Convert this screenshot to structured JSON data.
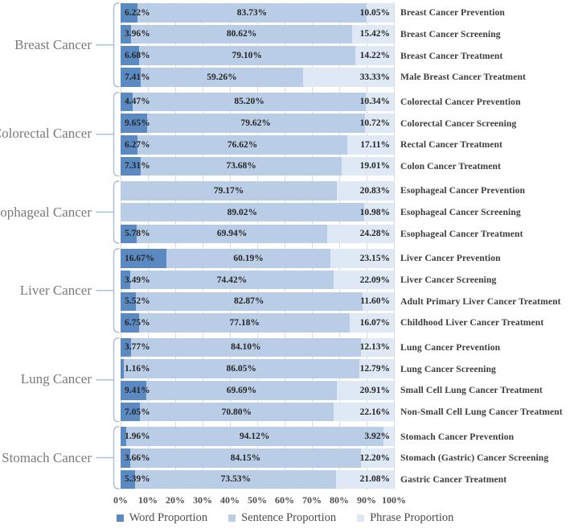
{
  "chart_data": {
    "type": "bar",
    "variant": "horizontal-stacked-100pct",
    "title": "",
    "xlabel": "",
    "ylabel": "",
    "x_axis": {
      "min": 0,
      "max": 100,
      "ticks": [
        "0%",
        "10%",
        "20%",
        "30%",
        "40%",
        "50%",
        "60%",
        "70%",
        "80%",
        "90%",
        "100%"
      ],
      "gridlines": true,
      "gridline_color": "#dcdcdc"
    },
    "series": [
      {
        "name": "Word Proportion",
        "color": "#5b8ac3"
      },
      {
        "name": "Sentence Proportion",
        "color": "#b9cde6"
      },
      {
        "name": "Phrase Proportion",
        "color": "#dfe9f5"
      }
    ],
    "legend_position": "bottom",
    "bracket_color": "#a3bcdc",
    "groups": [
      {
        "label": "Breast Cancer",
        "rows": [
          {
            "label": "Breast Cancer Prevention",
            "values": [
              6.22,
              83.73,
              10.05
            ],
            "value_labels": [
              "6.22%",
              "83.73%",
              "10.05%"
            ]
          },
          {
            "label": "Breast Cancer Screening",
            "values": [
              3.96,
              80.62,
              15.42
            ],
            "value_labels": [
              "3.96%",
              "80.62%",
              "15.42%"
            ]
          },
          {
            "label": "Breast Cancer Treatment",
            "values": [
              6.68,
              79.1,
              14.22
            ],
            "value_labels": [
              "6.68%",
              "79.10%",
              "14.22%"
            ]
          },
          {
            "label": "Male Breast Cancer Treatment",
            "values": [
              7.41,
              59.26,
              33.33
            ],
            "value_labels": [
              "7.41%",
              "59.26%",
              "33.33%"
            ]
          }
        ]
      },
      {
        "label": "Colorectal Cancer",
        "rows": [
          {
            "label": "Colorectal Cancer Prevention",
            "values": [
              4.47,
              85.2,
              10.34
            ],
            "value_labels": [
              "4.47%",
              "85.20%",
              "10.34%"
            ]
          },
          {
            "label": "Colorectal Cancer Screening",
            "values": [
              9.65,
              79.62,
              10.72
            ],
            "value_labels": [
              "9.65%",
              "79.62%",
              "10.72%"
            ]
          },
          {
            "label": "Rectal Cancer Treatment",
            "values": [
              6.27,
              76.62,
              17.11
            ],
            "value_labels": [
              "6.27%",
              "76.62%",
              "17.11%"
            ]
          },
          {
            "label": "Colon Cancer Treatment",
            "values": [
              7.31,
              73.68,
              19.01
            ],
            "value_labels": [
              "7.31%",
              "73.68%",
              "19.01%"
            ]
          }
        ]
      },
      {
        "label": "Esophageal Cancer",
        "rows": [
          {
            "label": "Esophageal Cancer Prevention",
            "values": [
              0,
              79.17,
              20.83
            ],
            "value_labels": [
              "",
              "79.17%",
              "20.83%"
            ]
          },
          {
            "label": "Esophageal Cancer Screening",
            "values": [
              0,
              89.02,
              10.98
            ],
            "value_labels": [
              "",
              "89.02%",
              "10.98%"
            ]
          },
          {
            "label": "Esophageal Cancer Treatment",
            "values": [
              5.78,
              69.94,
              24.28
            ],
            "value_labels": [
              "5.78%",
              "69.94%",
              "24.28%"
            ]
          }
        ]
      },
      {
        "label": "Liver Cancer",
        "rows": [
          {
            "label": "Liver Cancer Prevention",
            "values": [
              16.67,
              60.19,
              23.15
            ],
            "value_labels": [
              "16.67%",
              "60.19%",
              "23.15%"
            ]
          },
          {
            "label": "Liver Cancer Screening",
            "values": [
              3.49,
              74.42,
              22.09
            ],
            "value_labels": [
              "3.49%",
              "74.42%",
              "22.09%"
            ]
          },
          {
            "label": "Adult Primary Liver Cancer Treatment",
            "values": [
              5.52,
              82.87,
              11.6
            ],
            "value_labels": [
              "5.52%",
              "82.87%",
              "11.60%"
            ]
          },
          {
            "label": "Childhood Liver Cancer Treatment",
            "values": [
              6.75,
              77.18,
              16.07
            ],
            "value_labels": [
              "6.75%",
              "77.18%",
              "16.07%"
            ]
          }
        ]
      },
      {
        "label": "Lung Cancer",
        "rows": [
          {
            "label": "Lung Cancer Prevention",
            "values": [
              3.77,
              84.1,
              12.13
            ],
            "value_labels": [
              "3.77%",
              "84.10%",
              "12.13%"
            ]
          },
          {
            "label": "Lung Cancer Screening",
            "values": [
              1.16,
              86.05,
              12.79
            ],
            "value_labels": [
              "1.16%",
              "86.05%",
              "12.79%"
            ]
          },
          {
            "label": "Small Cell Lung Cancer Treatment",
            "values": [
              9.41,
              69.69,
              20.91
            ],
            "value_labels": [
              "9.41%",
              "69.69%",
              "20.91%"
            ]
          },
          {
            "label": "Non-Small Cell Lung Cancer Treatment",
            "values": [
              7.05,
              70.8,
              22.16
            ],
            "value_labels": [
              "7.05%",
              "70.80%",
              "22.16%"
            ]
          }
        ]
      },
      {
        "label": "Stomach Cancer",
        "rows": [
          {
            "label": "Stomach Cancer Prevention",
            "values": [
              1.96,
              94.12,
              3.92
            ],
            "value_labels": [
              "1.96%",
              "94.12%",
              "3.92%"
            ]
          },
          {
            "label": "Stomach (Gastric) Cancer Screening",
            "values": [
              3.66,
              84.15,
              12.2
            ],
            "value_labels": [
              "3.66%",
              "84.15%",
              "12.20%"
            ]
          },
          {
            "label": "Gastric Cancer Treatment",
            "values": [
              5.39,
              73.53,
              21.08
            ],
            "value_labels": [
              "5.39%",
              "73.53%",
              "21.08%"
            ]
          }
        ]
      }
    ]
  }
}
